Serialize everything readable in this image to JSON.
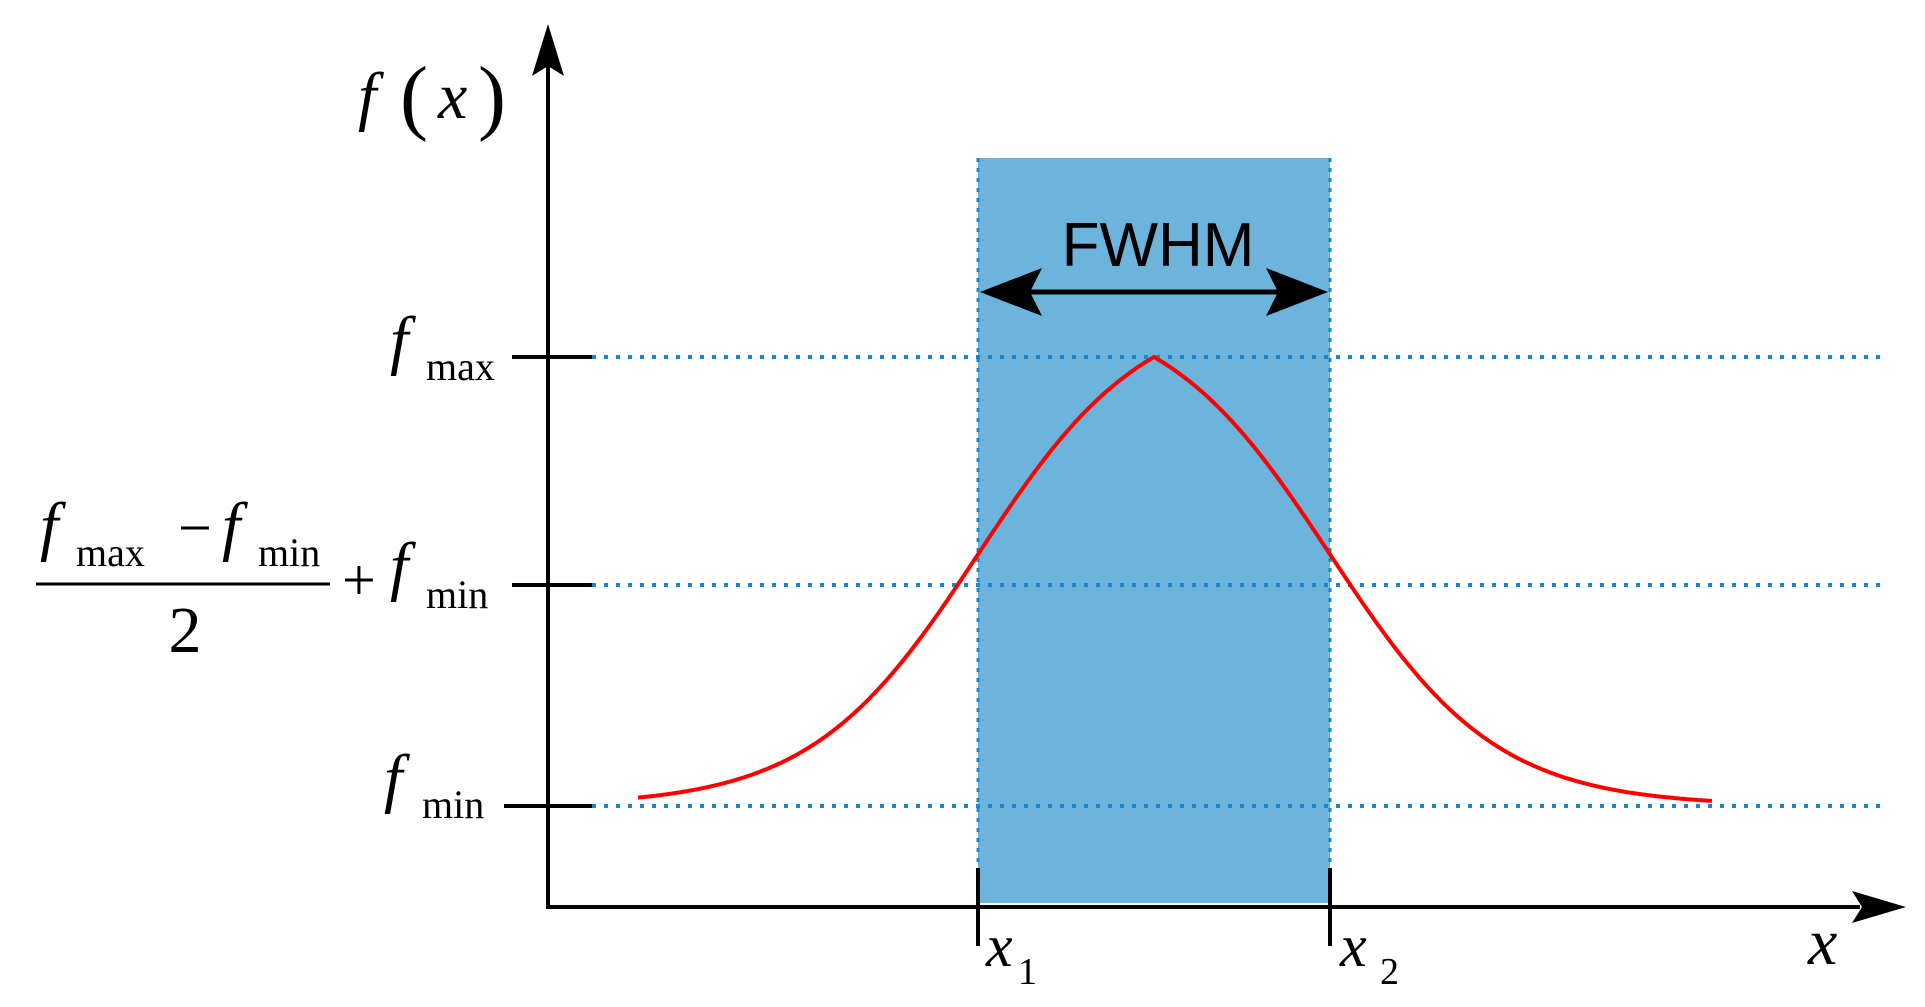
{
  "colors": {
    "band_fill": "#6cb4dc",
    "guide_line": "#1a86d0",
    "curve": "#ff0000",
    "axis": "#000000"
  },
  "labels": {
    "y_axis_f": "f",
    "y_axis_paren_open": "(",
    "y_axis_x": "x",
    "y_axis_paren_close": ")",
    "x_axis": "x",
    "fwhm": "FWHM",
    "fmax_f": "f",
    "fmax_sub": "max",
    "fmin_f": "f",
    "fmin_sub": "min",
    "half_num_f1": "f",
    "half_num_sub1": "max",
    "half_num_minus": "−",
    "half_num_f2": "f",
    "half_num_sub2": "min",
    "half_den": "2",
    "half_plus": "+",
    "half_f": "f",
    "half_sub": "min",
    "x1_main": "x",
    "x1_sub": "1",
    "x2_main": "x",
    "x2_sub": "2"
  },
  "icons": {
    "y_arrow": "arrow-up-icon",
    "x_arrow": "arrow-right-icon",
    "fwhm_arrow": "double-headed-arrow-icon"
  }
}
